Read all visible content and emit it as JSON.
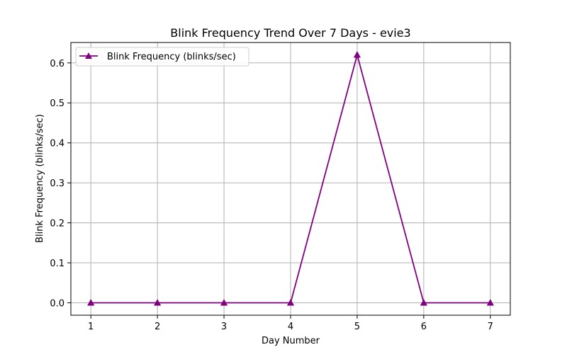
{
  "chart_data": {
    "type": "line",
    "title": "Blink Frequency Trend Over 7 Days - evie3",
    "xlabel": "Day Number",
    "ylabel": "Blink Frequency (blinks/sec)",
    "x": [
      1,
      2,
      3,
      4,
      5,
      6,
      7
    ],
    "x_ticks": [
      1,
      2,
      3,
      4,
      5,
      6,
      7
    ],
    "y_ticks": [
      0.0,
      0.1,
      0.2,
      0.3,
      0.4,
      0.5,
      0.6
    ],
    "y_tick_labels": [
      "0.0",
      "0.1",
      "0.2",
      "0.3",
      "0.4",
      "0.5",
      "0.6"
    ],
    "xlim": [
      0.7,
      7.3
    ],
    "ylim": [
      -0.031,
      0.651
    ],
    "grid": true,
    "legend_position": "top-left",
    "series": [
      {
        "name": "Blink Frequency (blinks/sec)",
        "values": [
          0.0,
          0.0,
          0.0,
          0.0,
          0.62,
          0.0,
          0.0
        ],
        "color": "#800080",
        "marker": "triangle-up"
      }
    ]
  }
}
